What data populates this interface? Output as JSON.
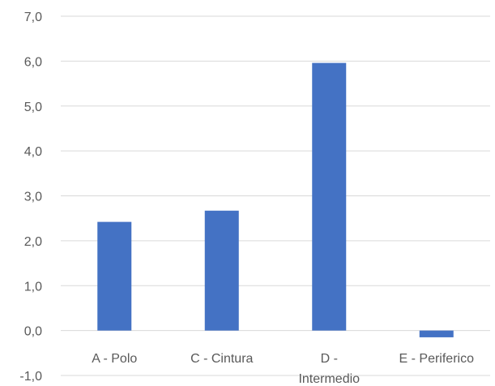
{
  "chart_data": {
    "type": "bar",
    "categories": [
      "A - Polo",
      "C - Cintura",
      "D - Intermedio",
      "E - Periferico"
    ],
    "category_lines": [
      [
        "A - Polo"
      ],
      [
        "C - Cintura"
      ],
      [
        "D -",
        "Intermedio"
      ],
      [
        "E - Periferico"
      ]
    ],
    "values": [
      2.42,
      2.67,
      5.96,
      -0.15
    ],
    "ylim": [
      -1,
      7
    ],
    "yticks": [
      -1,
      0,
      1,
      2,
      3,
      4,
      5,
      6,
      7
    ],
    "ytick_labels": [
      "-1,0",
      "0,0",
      "1,0",
      "2,0",
      "3,0",
      "4,0",
      "5,0",
      "6,0",
      "7,0"
    ],
    "grid": true,
    "legend": "none",
    "bar_color": "#4472c4",
    "title": "",
    "xlabel": "",
    "ylabel": ""
  }
}
